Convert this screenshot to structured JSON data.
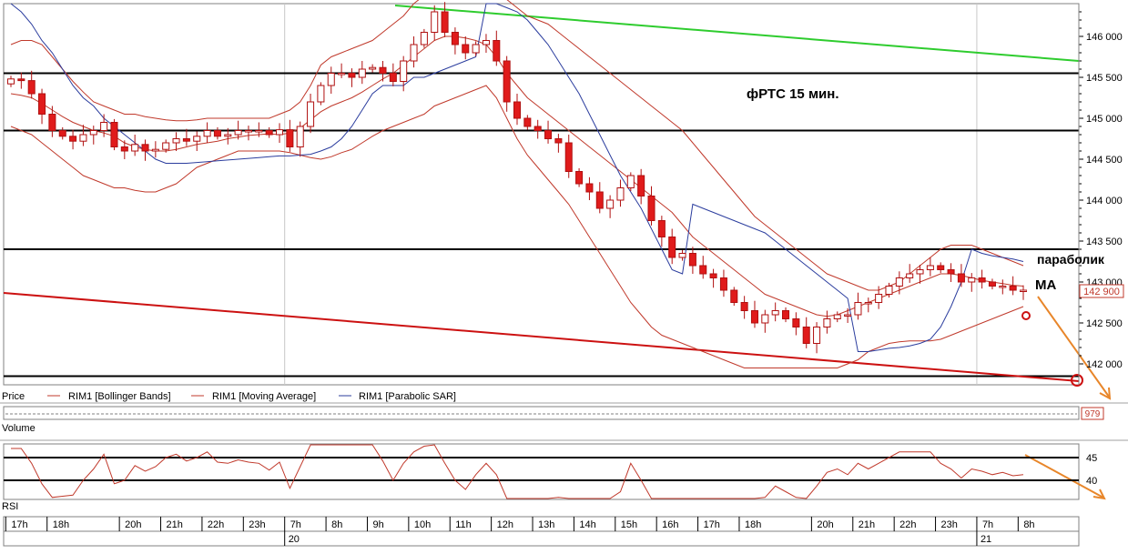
{
  "chart_data": {
    "type": "candlestick",
    "instrument": "RIM1",
    "annotation_title": "фРТС   15 мин.",
    "last_price_label": "142 900",
    "price_axis": {
      "ylim": [
        141800,
        146400
      ],
      "ticks": [
        142000,
        142500,
        143000,
        143500,
        144000,
        144500,
        145000,
        145500,
        146000
      ],
      "tick_labels": [
        "142 000",
        "142 500",
        "143 000",
        "143 500",
        "144 000",
        "144 500",
        "145 000",
        "145 500",
        "146 000"
      ]
    },
    "time_axis": {
      "hour_labels": [
        {
          "i": 0,
          "label": "17h"
        },
        {
          "i": 4,
          "label": "18h"
        },
        {
          "i": 11,
          "label": "20h"
        },
        {
          "i": 15,
          "label": "21h"
        },
        {
          "i": 19,
          "label": "22h"
        },
        {
          "i": 23,
          "label": "23h"
        },
        {
          "i": 27,
          "label": "7h"
        },
        {
          "i": 31,
          "label": "8h"
        },
        {
          "i": 35,
          "label": "9h"
        },
        {
          "i": 39,
          "label": "10h"
        },
        {
          "i": 43,
          "label": "11h"
        },
        {
          "i": 47,
          "label": "12h"
        },
        {
          "i": 51,
          "label": "13h"
        },
        {
          "i": 55,
          "label": "14h"
        },
        {
          "i": 59,
          "label": "15h"
        },
        {
          "i": 63,
          "label": "16h"
        },
        {
          "i": 67,
          "label": "17h"
        },
        {
          "i": 71,
          "label": "18h"
        },
        {
          "i": 78,
          "label": "20h"
        },
        {
          "i": 82,
          "label": "21h"
        },
        {
          "i": 86,
          "label": "22h"
        },
        {
          "i": 90,
          "label": "23h"
        },
        {
          "i": 94,
          "label": "7h"
        },
        {
          "i": 98,
          "label": "8h"
        }
      ],
      "day_labels": [
        {
          "i": 27,
          "label": "20"
        },
        {
          "i": 94,
          "label": "21"
        }
      ]
    },
    "close": [
      145480,
      145460,
      145300,
      145050,
      144850,
      144780,
      144720,
      144800,
      144850,
      144950,
      144650,
      144600,
      144680,
      144600,
      144620,
      144700,
      144750,
      144720,
      144780,
      144850,
      144780,
      144800,
      144850,
      144850,
      144850,
      144800,
      144860,
      144650,
      144900,
      145200,
      145400,
      145550,
      145550,
      145500,
      145600,
      145620,
      145550,
      145450,
      145700,
      145900,
      146050,
      146300,
      146050,
      145900,
      145800,
      145900,
      145950,
      145700,
      145200,
      145000,
      144900,
      144850,
      144750,
      144700,
      144350,
      144200,
      144100,
      143900,
      144000,
      144150,
      144300,
      144050,
      143750,
      143550,
      143300,
      143350,
      143200,
      143100,
      143050,
      142900,
      142750,
      142650,
      142500,
      142600,
      142650,
      142550,
      142450,
      142250,
      142450,
      142550,
      142600,
      142600,
      142750,
      142750,
      142850,
      142950,
      143050,
      143100,
      143150,
      143200,
      143150,
      143100,
      143000,
      143050,
      143000,
      142950,
      142950,
      142900,
      142900
    ],
    "bollinger": {
      "upper": [
        145900,
        145950,
        145950,
        145900,
        145750,
        145600,
        145450,
        145320,
        145200,
        145150,
        145100,
        145050,
        145050,
        145020,
        145000,
        144980,
        144970,
        144970,
        144980,
        145000,
        145000,
        145000,
        145000,
        145000,
        145000,
        145000,
        145050,
        145100,
        145200,
        145400,
        145650,
        145750,
        145800,
        145850,
        145900,
        145950,
        146050,
        146150,
        146250,
        146400,
        146500,
        146600,
        146650,
        146650,
        146650,
        146600,
        146500,
        146450,
        146450,
        146350,
        146250,
        146200,
        146150,
        146050,
        145950,
        145850,
        145750,
        145650,
        145550,
        145450,
        145350,
        145250,
        145150,
        145050,
        144950,
        144850,
        144700,
        144550,
        144400,
        144250,
        144100,
        143950,
        143800,
        143700,
        143600,
        143500,
        143400,
        143300,
        143200,
        143100,
        143050,
        143000,
        142950,
        142900,
        142900,
        142950,
        143000,
        143100,
        143200,
        143300,
        143400,
        143450,
        143450,
        143450,
        143400,
        143350,
        143300,
        143250,
        143200
      ],
      "lower": [
        144900,
        144850,
        144800,
        144700,
        144600,
        144500,
        144400,
        144300,
        144250,
        144200,
        144150,
        144150,
        144120,
        144100,
        144100,
        144150,
        144200,
        144300,
        144400,
        144450,
        144500,
        144550,
        144600,
        144600,
        144600,
        144600,
        144600,
        144580,
        144550,
        144520,
        144500,
        144530,
        144580,
        144620,
        144700,
        144780,
        144850,
        144900,
        144950,
        145000,
        145050,
        145150,
        145200,
        145250,
        145300,
        145350,
        145400,
        145250,
        145000,
        144750,
        144550,
        144400,
        144250,
        144100,
        143950,
        143750,
        143550,
        143350,
        143150,
        142950,
        142750,
        142600,
        142450,
        142350,
        142300,
        142250,
        142200,
        142150,
        142100,
        142050,
        142000,
        141950,
        141950,
        141950,
        141950,
        141950,
        141950,
        141950,
        141950,
        141950,
        141950,
        142000,
        142050,
        142150,
        142200,
        142250,
        142270,
        142280,
        142280,
        142280,
        142300,
        142350,
        142400,
        142450,
        142500,
        142550,
        142600,
        142650,
        142700
      ]
    },
    "moving_average": [
      145300,
      145280,
      145250,
      145180,
      145100,
      145020,
      144950,
      144900,
      144850,
      144820,
      144780,
      144700,
      144650,
      144620,
      144600,
      144600,
      144620,
      144650,
      144680,
      144700,
      144720,
      144750,
      144770,
      144790,
      144800,
      144810,
      144800,
      144820,
      144880,
      144980,
      145080,
      145150,
      145200,
      145250,
      145320,
      145400,
      145480,
      145550,
      145650,
      145750,
      145850,
      145950,
      146000,
      146000,
      145980,
      145950,
      145900,
      145750,
      145550,
      145400,
      145250,
      145150,
      145050,
      144950,
      144850,
      144750,
      144650,
      144550,
      144450,
      144350,
      144250,
      144150,
      144050,
      143950,
      143850,
      143700,
      143550,
      143450,
      143350,
      143250,
      143150,
      143050,
      142950,
      142850,
      142800,
      142750,
      142700,
      142650,
      142600,
      142580,
      142600,
      142650,
      142700,
      142750,
      142800,
      142850,
      142900,
      142950,
      143000,
      143050,
      143100,
      143100,
      143080,
      143050,
      143020,
      143000,
      142980,
      142960,
      142950
    ],
    "parabolic_sar": [
      146400,
      146300,
      146150,
      145950,
      145800,
      145600,
      145400,
      145250,
      145150,
      145000,
      144900,
      144800,
      144700,
      144600,
      144500,
      144450,
      144450,
      144450,
      144460,
      144470,
      144480,
      144490,
      144500,
      144510,
      144520,
      144530,
      144540,
      144540,
      144550,
      144560,
      144600,
      144650,
      144750,
      144900,
      145100,
      145300,
      145400,
      145400,
      145400,
      145500,
      145500,
      145550,
      145600,
      145650,
      145700,
      145750,
      146400,
      146400,
      146350,
      146300,
      146200,
      146050,
      145900,
      145700,
      145500,
      145300,
      145050,
      144800,
      144550,
      144300,
      144100,
      143900,
      143650,
      143400,
      143150,
      143100,
      143950,
      143900,
      143850,
      143800,
      143750,
      143700,
      143650,
      143600,
      143500,
      143400,
      143300,
      143200,
      143100,
      143000,
      142900,
      142800,
      142150,
      142150,
      142170,
      142190,
      142200,
      142220,
      142250,
      142300,
      142450,
      142700,
      143000,
      143400,
      143350,
      143320,
      143300,
      143280,
      143250
    ],
    "horizontal_levels": [
      145550,
      144850,
      143400,
      141850
    ],
    "rsi": {
      "levels": [
        45,
        40
      ],
      "tick_labels": [
        "45",
        "40"
      ],
      "ylim": [
        34,
        48
      ]
    },
    "volume_label": "979",
    "legend": [
      {
        "name": "Price",
        "color": "#ffffff"
      },
      {
        "name": "RIM1 [Bollinger Bands]",
        "color": "#c0392b"
      },
      {
        "name": "RIM1 [Moving Average]",
        "color": "#c0392b"
      },
      {
        "name": "RIM1 [Parabolic SAR]",
        "color": "#2b3d9e"
      }
    ],
    "annotations": [
      {
        "label": "параболик"
      },
      {
        "label": "МА"
      }
    ],
    "pane_labels": {
      "volume": "Volume",
      "rsi": "RSI"
    }
  },
  "colors": {
    "candle_up": "#ffffff",
    "candle_down": "#e01b1b",
    "candle_outline": "#b01010",
    "bollinger": "#c0392b",
    "ma": "#c0392b",
    "sar": "#2b3d9e",
    "resistance": "#2ecc2e",
    "support": "#cc1111",
    "forecast": "#e8862a",
    "level": "#000000"
  }
}
